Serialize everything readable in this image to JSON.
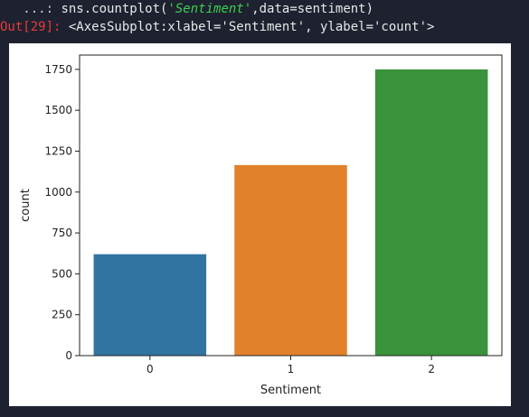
{
  "console": {
    "line1": {
      "prompt": "   ...: ",
      "code_before": "sns.countplot(",
      "string_arg": "'Sentiment'",
      "code_after": ",data=sentiment)"
    },
    "line2": {
      "prompt": "Out[29]: ",
      "output": "<AxesSubplot:xlabel='Sentiment', ylabel='count'>"
    }
  },
  "chart_data": {
    "type": "bar",
    "categories": [
      "0",
      "1",
      "2"
    ],
    "values": [
      620,
      1165,
      1750
    ],
    "colors": [
      "#3274a1",
      "#e1812c",
      "#3a923a"
    ],
    "xlabel": "Sentiment",
    "ylabel": "count",
    "ylim": [
      0,
      1837.5
    ],
    "yticks": [
      0,
      250,
      500,
      750,
      1000,
      1250,
      1500,
      1750
    ],
    "grid": false,
    "legend": "none"
  }
}
